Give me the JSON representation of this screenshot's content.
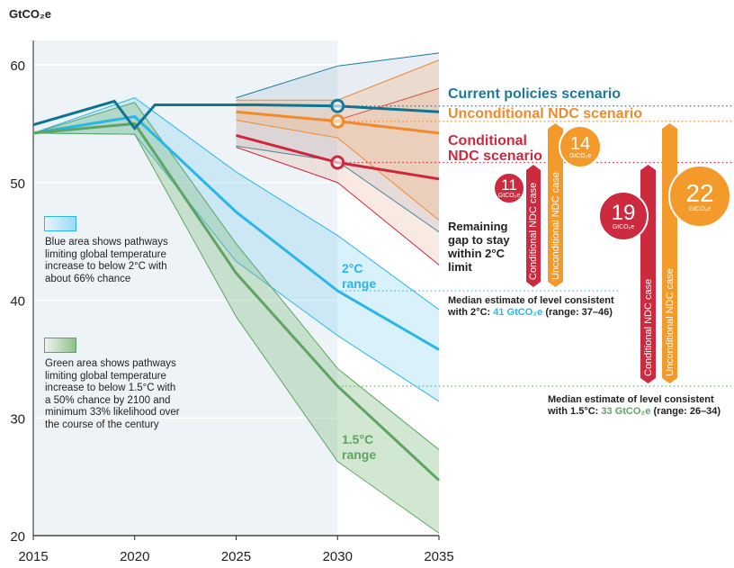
{
  "chart_data": {
    "type": "line",
    "ylabel": "GtCO₂e",
    "xlim": [
      2015,
      2035
    ],
    "ylim": [
      20,
      62
    ],
    "xticks": [
      "2015",
      "2020",
      "2025",
      "2030",
      "2035"
    ],
    "yticks": [
      "20",
      "30",
      "40",
      "50",
      "60"
    ],
    "grid": true,
    "series": [
      {
        "key": "hist",
        "color": "#0e7490",
        "x": [
          2015,
          2019,
          2020,
          2021,
          2025,
          2026,
          2030,
          2035
        ],
        "y": [
          54.9,
          56.9,
          54.6,
          56.6,
          56.6,
          56.6,
          56.5,
          56.0
        ]
      },
      {
        "key": "cp_range",
        "name": "Current policies scenario",
        "color": "#1b7a9c",
        "x": [
          2025,
          2030,
          2035
        ],
        "upper": [
          57.2,
          59.9,
          61.0
        ],
        "lower": [
          53.1,
          51.8,
          45.8
        ]
      },
      {
        "key": "uncond",
        "name": "Unconditional NDC scenario",
        "color": "#f08a2c",
        "x": [
          2025,
          2030,
          2035
        ],
        "median": [
          56.0,
          55.2,
          54.2
        ],
        "upper": [
          57.0,
          57.0,
          60.4
        ],
        "lower": [
          55.3,
          53.8,
          46.8
        ]
      },
      {
        "key": "cond",
        "name": "Conditional NDC scenario",
        "color": "#d0263b",
        "x": [
          2025,
          2030,
          2035
        ],
        "median": [
          54.0,
          51.7,
          50.3
        ],
        "upper": [
          56.0,
          55.3,
          58.0
        ],
        "lower": [
          53.0,
          50.0,
          43.0
        ]
      },
      {
        "key": "two",
        "name": "2°C range",
        "color": "#29b6e8",
        "x": [
          2015,
          2020,
          2025,
          2030,
          2035
        ],
        "median": [
          54.2,
          55.6,
          47.5,
          40.8,
          35.8
        ],
        "upper": [
          54.2,
          57.2,
          50.9,
          45.5,
          39.2
        ],
        "lower": [
          54.2,
          54.1,
          43.3,
          37.0,
          31.4
        ]
      },
      {
        "key": "one5",
        "name": "1.5°C range",
        "color": "#5fa463",
        "x": [
          2015,
          2020,
          2025,
          2030,
          2035
        ],
        "median": [
          54.2,
          55.0,
          42.3,
          32.7,
          24.7
        ],
        "upper": [
          54.2,
          56.8,
          44.8,
          34.2,
          27.3
        ],
        "lower": [
          54.2,
          54.1,
          38.6,
          26.3,
          20.2
        ]
      }
    ]
  },
  "labels": {
    "current": "Current policies scenario",
    "uncond": "Unconditional NDC scenario",
    "cond1": "Conditional",
    "cond2": "NDC scenario",
    "two1": "2°C",
    "two2": "range",
    "one51": "1.5°C",
    "one52": "range",
    "gap": [
      "Remaining",
      "gap to stay",
      "within 2°C",
      "limit"
    ],
    "blue_note": [
      "Blue area shows pathways",
      "limiting global temperature",
      "increase to below 2°C with",
      "about 66% chance"
    ],
    "green_note": [
      "Green area shows pathways",
      "limiting global temperature",
      "increase to below 1.5°C with",
      "a 50% chance by 2100 and",
      "minimum 33% likelihood over",
      "the course of the century"
    ],
    "median2_a": "Median estimate of level consistent",
    "median2_b": "with 2°C: ",
    "median2_v": "41 GtCO₂e",
    "median2_c": " (range: 37–46)",
    "median15_a": "Median estimate of level consistent",
    "median15_b": "with 1.5°C: ",
    "median15_v": "33 GtCO₂e",
    "median15_c": " (range: 26–34)"
  },
  "gaps": {
    "cond_2030": {
      "label": "Conditional NDC case",
      "value": "11",
      "unit": "GtCO₂e"
    },
    "uncond_2030": {
      "label": "Unconditional NDC case",
      "value": "14",
      "unit": "GtCO₂e"
    },
    "cond_2035": {
      "label": "Conditional NDC case",
      "value": "19",
      "unit": "GtCO₂e"
    },
    "uncond_2035": {
      "label": "Unconditional NDC case",
      "value": "22",
      "unit": "GtCO₂e"
    }
  },
  "colors": {
    "red": "#cc2a3f",
    "orange": "#f39a2b",
    "teal": "#1b7a9c",
    "blue": "#29b6e8",
    "green": "#5fa463"
  }
}
